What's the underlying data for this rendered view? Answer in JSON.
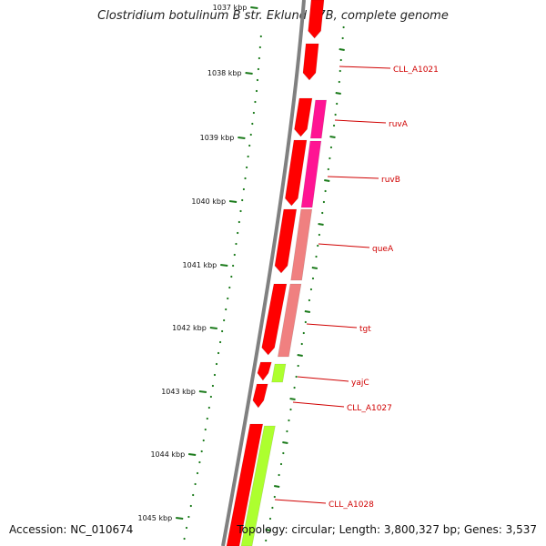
{
  "title": "Clostridium botulinum B str. Eklund 17B, complete genome",
  "footer": {
    "accession": "Accession: NC_010674",
    "topology": "Topology: circular; Length: 3,800,327 bp; Genes: 3,537"
  },
  "colors": {
    "backbone": "#808080",
    "forward_cds": "#ff0000",
    "reverse_cds_magenta": "#ff1493",
    "reverse_cds_salmon": "#f08080",
    "reverse_cds_green": "#adff2f",
    "gc_dots": "#1a7a1a",
    "label": "#d00000"
  },
  "scale": {
    "ticks": [
      "1037 kbp",
      "1038 kbp",
      "1039 kbp",
      "1040 kbp",
      "1041 kbp",
      "1042 kbp",
      "1043 kbp",
      "1044 kbp",
      "1045 kbp"
    ]
  },
  "genes": [
    {
      "label": "CLL_A1021"
    },
    {
      "label": "ruvA"
    },
    {
      "label": "ruvB"
    },
    {
      "label": "queA"
    },
    {
      "label": "tgt"
    },
    {
      "label": "yajC"
    },
    {
      "label": "CLL_A1027"
    },
    {
      "label": "CLL_A1028"
    }
  ]
}
